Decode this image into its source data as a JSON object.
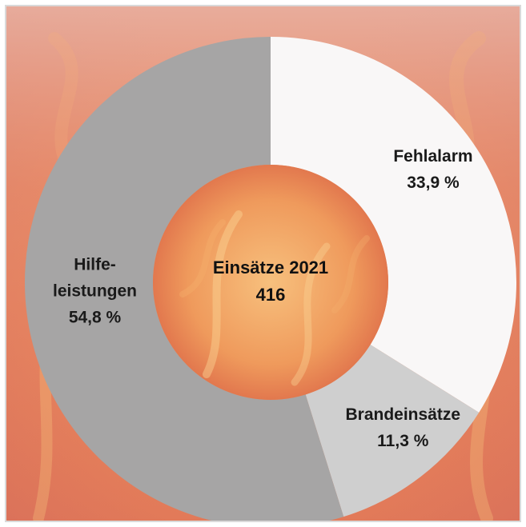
{
  "chart_data": {
    "type": "pie",
    "variant": "donut",
    "categories": [
      "Fehlalarm",
      "Brandeinsätze",
      "Hilfeleistungen"
    ],
    "values": [
      33.9,
      11.3,
      54.8
    ],
    "unit": "%",
    "value_labels": [
      "33,9 %",
      "11,3 %",
      "54,8 %"
    ],
    "slice_label_lines": [
      [
        "Fehlalarm"
      ],
      [
        "Brandeinsätze"
      ],
      [
        "Hilfe-",
        "leistungen"
      ]
    ],
    "colors": [
      "#f9f7f7",
      "#cfcfcf",
      "#a6a5a5"
    ],
    "center_title": "Einsätze 2021",
    "center_value": "416",
    "start_angle": "12 o'clock",
    "direction": "clockwise",
    "background": "fire photo"
  }
}
